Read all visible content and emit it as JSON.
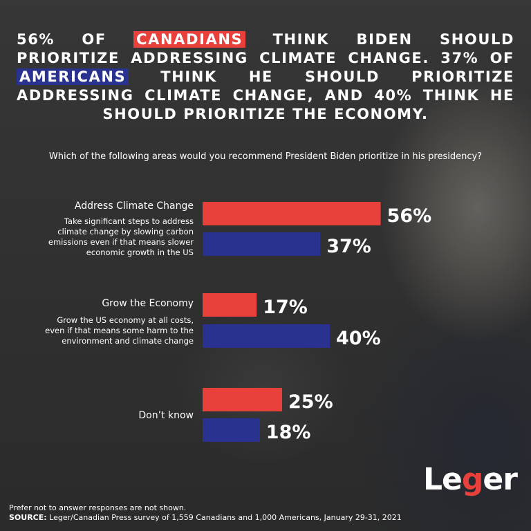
{
  "headline": {
    "part1": "56% OF ",
    "canadians": "CANADIANS",
    "part2": " THINK BIDEN SHOULD PRIORITIZE ADDRESSING CLIMATE CHANGE. 37% OF ",
    "americans": "AMERICANS",
    "part3": " THINK HE SHOULD PRIORITIZE ADDRESSING CLIMATE CHANGE, AND 40% THINK HE SHOULD PRIORITIZE THE ECONOMY."
  },
  "question": "Which of the following areas would you recommend President Biden prioritize in his presidency?",
  "colors": {
    "canadians": "#e8403b",
    "americans": "#2a3290"
  },
  "chart_data": {
    "type": "bar",
    "orientation": "horizontal",
    "categories": [
      {
        "title": "Address Climate Change",
        "description": [
          "Take significant steps to address",
          "climate change by slowing carbon",
          "emissions even if that means slower",
          "economic growth in the US"
        ]
      },
      {
        "title": "Grow the Economy",
        "description": [
          "Grow the US economy at all costs,",
          "even if that means some harm to the",
          "environment and climate change"
        ]
      },
      {
        "title": "Don’t know",
        "description": []
      }
    ],
    "series": [
      {
        "key": "canadians",
        "values": [
          56,
          17,
          25
        ],
        "labels": [
          "56%",
          "17%",
          "25%"
        ]
      },
      {
        "key": "americans",
        "values": [
          37,
          40,
          18
        ],
        "labels": [
          "37%",
          "40%",
          "18%"
        ]
      }
    ],
    "xlim": [
      0,
      100
    ]
  },
  "footnote": {
    "note": "Prefer not to answer responses are not shown.",
    "source_label": "SOURCE:",
    "source_text": " Leger/Canadian Press survey of 1,559 Canadians and 1,000 Americans, January 29-31, 2021"
  },
  "logo": {
    "before": "Le",
    "g": "g",
    "after": "er"
  }
}
